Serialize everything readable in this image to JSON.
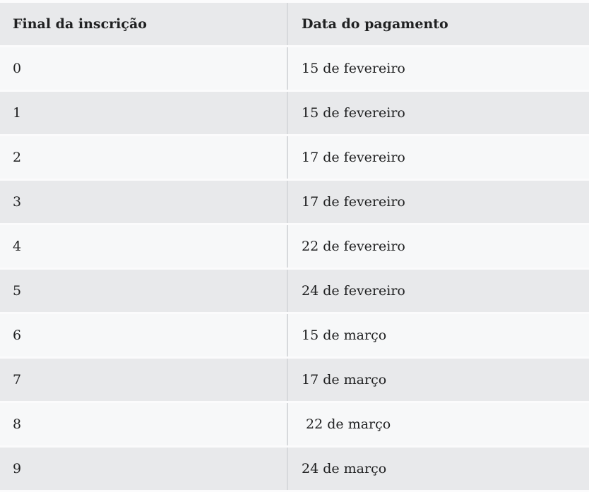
{
  "table": {
    "columns": [
      {
        "key": "final",
        "label": "Final da inscrição"
      },
      {
        "key": "data",
        "label": "Data do pagamento"
      }
    ],
    "rows": [
      {
        "final": "0",
        "data": "15 de fevereiro"
      },
      {
        "final": "1",
        "data": "15 de fevereiro"
      },
      {
        "final": "2",
        "data": "17 de fevereiro"
      },
      {
        "final": "3",
        "data": "17 de fevereiro"
      },
      {
        "final": "4",
        "data": "22 de fevereiro"
      },
      {
        "final": "5",
        "data": "24 de fevereiro"
      },
      {
        "final": "6",
        "data": "15 de março"
      },
      {
        "final": "7",
        "data": "17 de março"
      },
      {
        "final": "8",
        "data": " 22 de março"
      },
      {
        "final": "9",
        "data": "24 de março"
      }
    ]
  },
  "colors": {
    "gap": "#fbfbfc",
    "header-bg": "#e8e9eb",
    "row-light": "#f7f8f9",
    "row-gray": "#e8e9eb",
    "divider": "#d7d9dc",
    "text": "#202122"
  }
}
